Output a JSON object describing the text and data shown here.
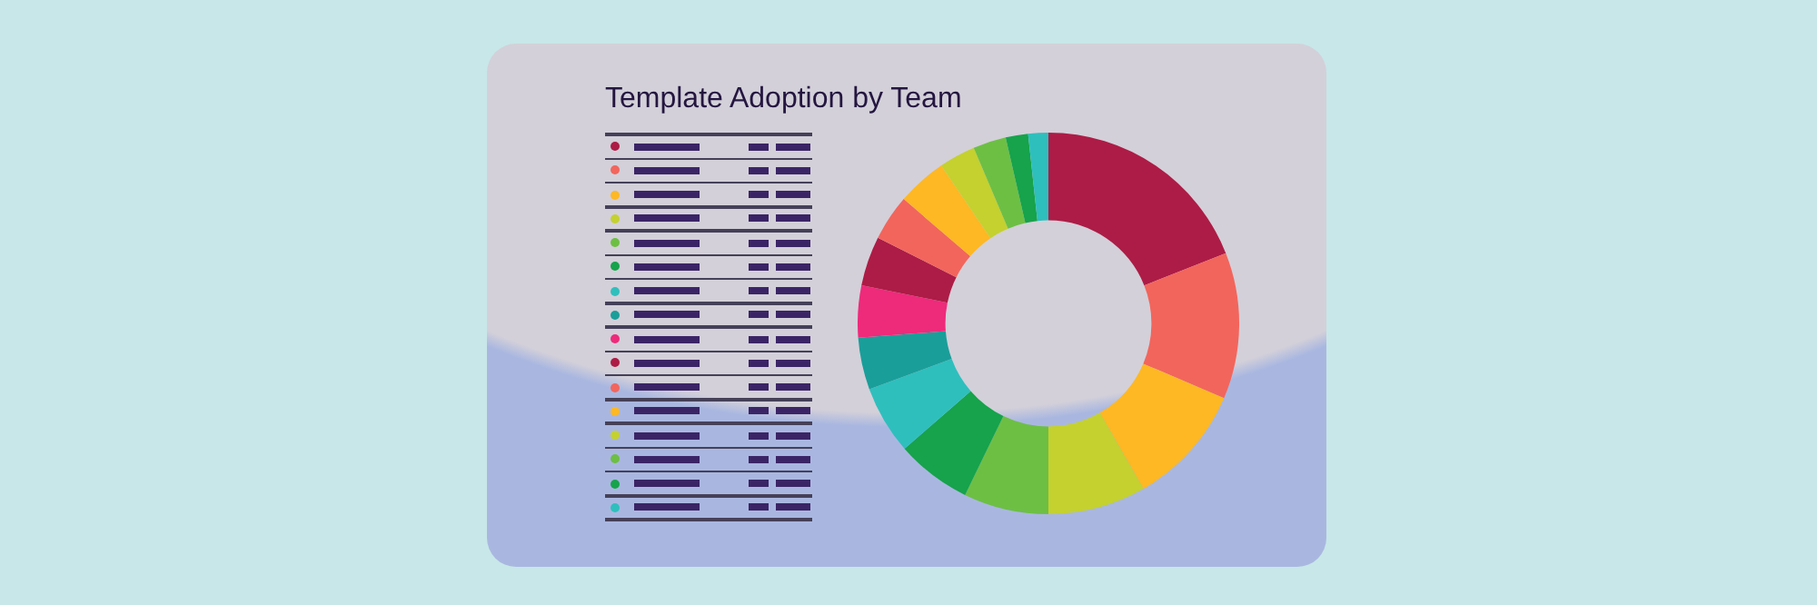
{
  "chart_data": {
    "type": "donut",
    "title": "Template Adoption by Team",
    "categories": [
      null,
      null,
      null,
      null,
      null,
      null,
      null,
      null,
      null,
      null,
      null,
      null,
      null,
      null,
      null,
      null
    ],
    "values": [
      19.0,
      12.4,
      10.3,
      8.3,
      7.2,
      6.4,
      5.8,
      4.4,
      4.4,
      4.2,
      3.9,
      4.2,
      3.1,
      2.8,
      1.9,
      1.7
    ],
    "colors": [
      "#ad1c46",
      "#f2655c",
      "#fdb823",
      "#c4d12f",
      "#6dbf44",
      "#16a34b",
      "#2ebfbd",
      "#1a9e9a",
      "#ee2a7b",
      "#ad1c46",
      "#f2655c",
      "#fdb823",
      "#c4d12f",
      "#6dbf44",
      "#16a34b",
      "#2ebfbd"
    ]
  }
}
